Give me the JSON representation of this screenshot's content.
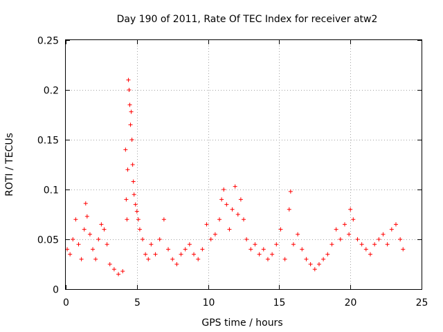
{
  "chart_data": {
    "type": "scatter",
    "title": "Day 190 of 2011, Rate Of TEC Index for receiver atw2",
    "xlabel": "GPS time / hours",
    "ylabel": "ROTI / TECUs",
    "xlim": [
      0,
      25
    ],
    "ylim": [
      0,
      0.25
    ],
    "xticks": [
      "0",
      "5",
      "10",
      "15",
      "20",
      "25"
    ],
    "yticks": [
      "0",
      "0.05",
      "0.1",
      "0.15",
      "0.2",
      "0.25"
    ],
    "grid": true,
    "marker": "plus",
    "color": "#ff0000",
    "series": [
      {
        "name": "ROTI",
        "x": [
          0.1,
          0.3,
          0.5,
          0.7,
          0.9,
          1.1,
          1.3,
          1.4,
          1.5,
          1.7,
          1.9,
          2.1,
          2.3,
          2.5,
          2.7,
          2.9,
          3.1,
          3.4,
          3.7,
          4.0,
          4.2,
          4.25,
          4.3,
          4.35,
          4.4,
          4.45,
          4.5,
          4.55,
          4.6,
          4.65,
          4.7,
          4.75,
          4.8,
          4.9,
          5.0,
          5.1,
          5.2,
          5.4,
          5.6,
          5.8,
          6.0,
          6.3,
          6.6,
          6.9,
          7.2,
          7.5,
          7.8,
          8.1,
          8.4,
          8.7,
          9.0,
          9.3,
          9.6,
          9.9,
          10.2,
          10.5,
          10.8,
          10.95,
          11.1,
          11.3,
          11.5,
          11.7,
          11.9,
          12.1,
          12.3,
          12.5,
          12.7,
          13.0,
          13.3,
          13.6,
          13.9,
          14.2,
          14.5,
          14.8,
          15.1,
          15.4,
          15.7,
          15.8,
          16.0,
          16.3,
          16.6,
          16.9,
          17.2,
          17.5,
          17.8,
          18.1,
          18.4,
          18.7,
          19.0,
          19.3,
          19.6,
          19.9,
          20.0,
          20.2,
          20.5,
          20.8,
          21.1,
          21.4,
          21.7,
          22.0,
          22.3,
          22.6,
          22.9,
          23.2,
          23.5,
          23.7
        ],
        "y": [
          0.04,
          0.035,
          0.05,
          0.07,
          0.045,
          0.03,
          0.06,
          0.086,
          0.073,
          0.055,
          0.04,
          0.03,
          0.05,
          0.065,
          0.06,
          0.045,
          0.025,
          0.02,
          0.015,
          0.018,
          0.14,
          0.09,
          0.07,
          0.12,
          0.21,
          0.2,
          0.185,
          0.165,
          0.178,
          0.15,
          0.125,
          0.108,
          0.095,
          0.085,
          0.078,
          0.07,
          0.06,
          0.05,
          0.035,
          0.03,
          0.045,
          0.035,
          0.05,
          0.07,
          0.04,
          0.03,
          0.025,
          0.035,
          0.04,
          0.045,
          0.035,
          0.03,
          0.04,
          0.065,
          0.05,
          0.055,
          0.07,
          0.09,
          0.1,
          0.085,
          0.06,
          0.08,
          0.103,
          0.075,
          0.09,
          0.07,
          0.05,
          0.04,
          0.045,
          0.035,
          0.04,
          0.03,
          0.035,
          0.045,
          0.06,
          0.03,
          0.08,
          0.098,
          0.045,
          0.055,
          0.04,
          0.03,
          0.025,
          0.02,
          0.025,
          0.03,
          0.035,
          0.045,
          0.06,
          0.05,
          0.065,
          0.055,
          0.08,
          0.07,
          0.05,
          0.045,
          0.04,
          0.035,
          0.045,
          0.05,
          0.055,
          0.045,
          0.06,
          0.065,
          0.05,
          0.04
        ]
      }
    ]
  }
}
